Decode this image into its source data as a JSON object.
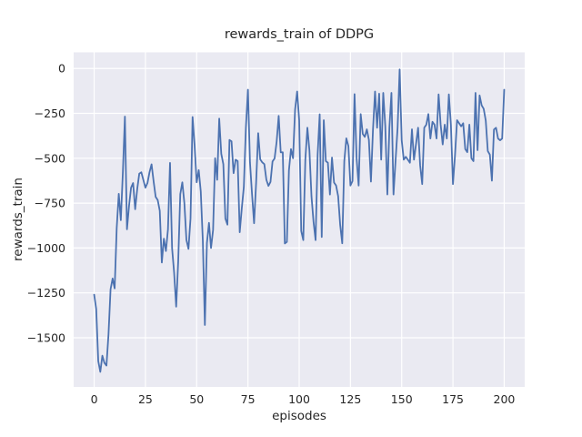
{
  "chart_data": {
    "type": "line",
    "title": "rewards_train of DDPG",
    "xlabel": "episodes",
    "ylabel": "rewards_train",
    "x_start": 0,
    "x_step": 1,
    "values": [
      -1260,
      -1340,
      -1630,
      -1690,
      -1600,
      -1640,
      -1655,
      -1480,
      -1230,
      -1170,
      -1225,
      -888,
      -698,
      -845,
      -578,
      -268,
      -896,
      -767,
      -664,
      -638,
      -784,
      -672,
      -586,
      -578,
      -621,
      -664,
      -638,
      -578,
      -534,
      -629,
      -715,
      -733,
      -793,
      -1081,
      -948,
      -1017,
      -896,
      -526,
      -1000,
      -1138,
      -1327,
      -1073,
      -700,
      -634,
      -750,
      -955,
      -1005,
      -836,
      -270,
      -430,
      -634,
      -566,
      -685,
      -960,
      -1429,
      -972,
      -860,
      -1000,
      -900,
      -500,
      -620,
      -279,
      -475,
      -533,
      -836,
      -870,
      -398,
      -406,
      -583,
      -508,
      -516,
      -912,
      -780,
      -660,
      -330,
      -118,
      -523,
      -700,
      -862,
      -636,
      -360,
      -506,
      -523,
      -533,
      -620,
      -654,
      -632,
      -518,
      -501,
      -408,
      -264,
      -467,
      -467,
      -975,
      -966,
      -567,
      -449,
      -500,
      -229,
      -128,
      -288,
      -905,
      -956,
      -508,
      -330,
      -457,
      -712,
      -855,
      -956,
      -480,
      -255,
      -939,
      -288,
      -516,
      -525,
      -702,
      -496,
      -635,
      -652,
      -711,
      -872,
      -974,
      -516,
      -389,
      -432,
      -652,
      -627,
      -143,
      -500,
      -652,
      -254,
      -364,
      -381,
      -339,
      -398,
      -630,
      -340,
      -128,
      -330,
      -140,
      -508,
      -136,
      -322,
      -702,
      -330,
      -136,
      -702,
      -516,
      -330,
      -5,
      -400,
      -508,
      -492,
      -508,
      -525,
      -339,
      -508,
      -420,
      -330,
      -540,
      -644,
      -330,
      -313,
      -254,
      -390,
      -297,
      -313,
      -390,
      -144,
      -313,
      -423,
      -313,
      -390,
      -144,
      -313,
      -644,
      -484,
      -288,
      -305,
      -322,
      -305,
      -449,
      -466,
      -313,
      -500,
      -516,
      -136,
      -455,
      -150,
      -205,
      -225,
      -290,
      -460,
      -480,
      -625,
      -340,
      -330,
      -390,
      -400,
      -390,
      -118
    ],
    "xlim": [
      -10,
      210
    ],
    "ylim": [
      -1774,
      90
    ],
    "xticks": [
      0,
      25,
      50,
      75,
      100,
      125,
      150,
      175,
      200
    ],
    "yticks": [
      0,
      -250,
      -500,
      -750,
      -1000,
      -1250,
      -1500
    ],
    "grid": true,
    "legend_position": "none",
    "style": {
      "line_color": "#4c72b0",
      "plot_background": "#eaeaf2",
      "grid_color": "#ffffff",
      "text_color": "#262626",
      "figure_background": "#ffffff"
    }
  }
}
